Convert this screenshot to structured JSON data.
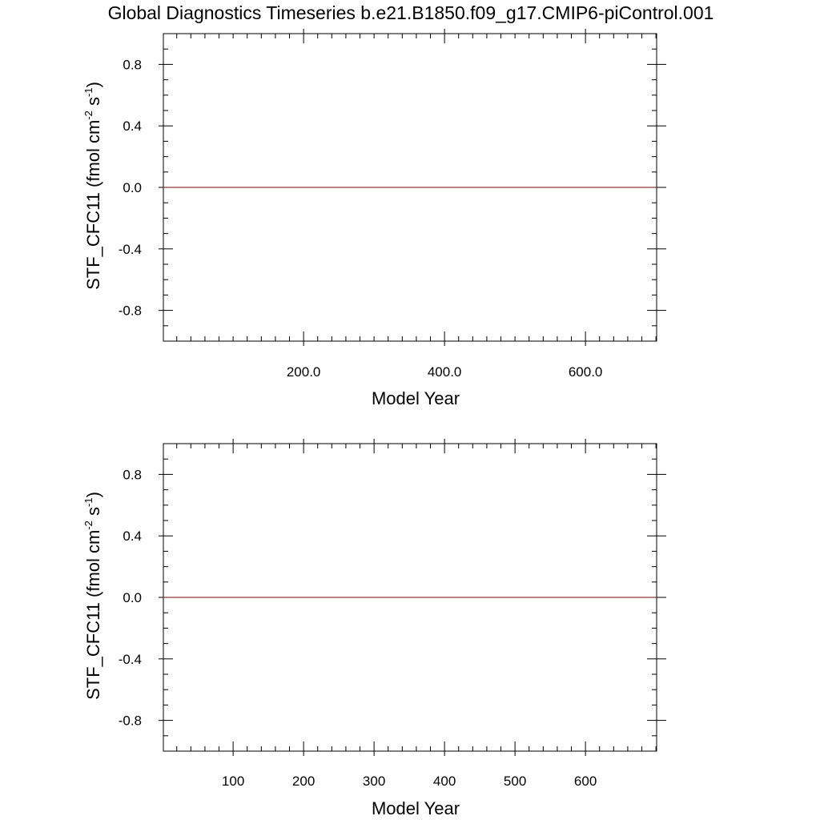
{
  "title": "Global Diagnostics Timeseries b.e21.B1850.f09_g17.CMIP6-piControl.001",
  "colors": {
    "line": "#8b3a2e",
    "axes": "#000000",
    "background": "#ffffff"
  },
  "chart_data": [
    {
      "type": "line",
      "xlabel": "Model Year",
      "ylabel": {
        "prefix": "STF_CFC11 (fmol cm",
        "sup1": "-2",
        "mid": " s",
        "sup2": "-1",
        "suffix": ")"
      },
      "xlim": [
        1,
        701
      ],
      "ylim": [
        -1.0,
        1.0
      ],
      "xticks": [
        200,
        400,
        600
      ],
      "xtick_labels": [
        "200.0",
        "400.0",
        "600.0"
      ],
      "yticks": [
        0.8,
        0.4,
        0.0,
        -0.4,
        -0.8
      ],
      "ytick_labels": [
        "0.8",
        "0.4",
        "0.0",
        "-0.4",
        "-0.8"
      ],
      "grid": false,
      "series": [
        {
          "x": [
            1,
            701
          ],
          "y": [
            0.0,
            0.0
          ]
        }
      ]
    },
    {
      "type": "line",
      "xlabel": "Model Year",
      "ylabel": {
        "prefix": "STF_CFC11 (fmol cm",
        "sup1": "-2",
        "mid": " s",
        "sup2": "-1",
        "suffix": ")"
      },
      "xlim": [
        1,
        701
      ],
      "ylim": [
        -1.0,
        1.0
      ],
      "xticks": [
        100,
        200,
        300,
        400,
        500,
        600
      ],
      "xtick_labels": [
        "100",
        "200",
        "300",
        "400",
        "500",
        "600"
      ],
      "yticks": [
        0.8,
        0.4,
        0.0,
        -0.4,
        -0.8
      ],
      "ytick_labels": [
        "0.8",
        "0.4",
        "0.0",
        "-0.4",
        "-0.8"
      ],
      "grid": false,
      "series": [
        {
          "x": [
            1,
            701
          ],
          "y": [
            0.0,
            0.0
          ]
        }
      ]
    }
  ]
}
